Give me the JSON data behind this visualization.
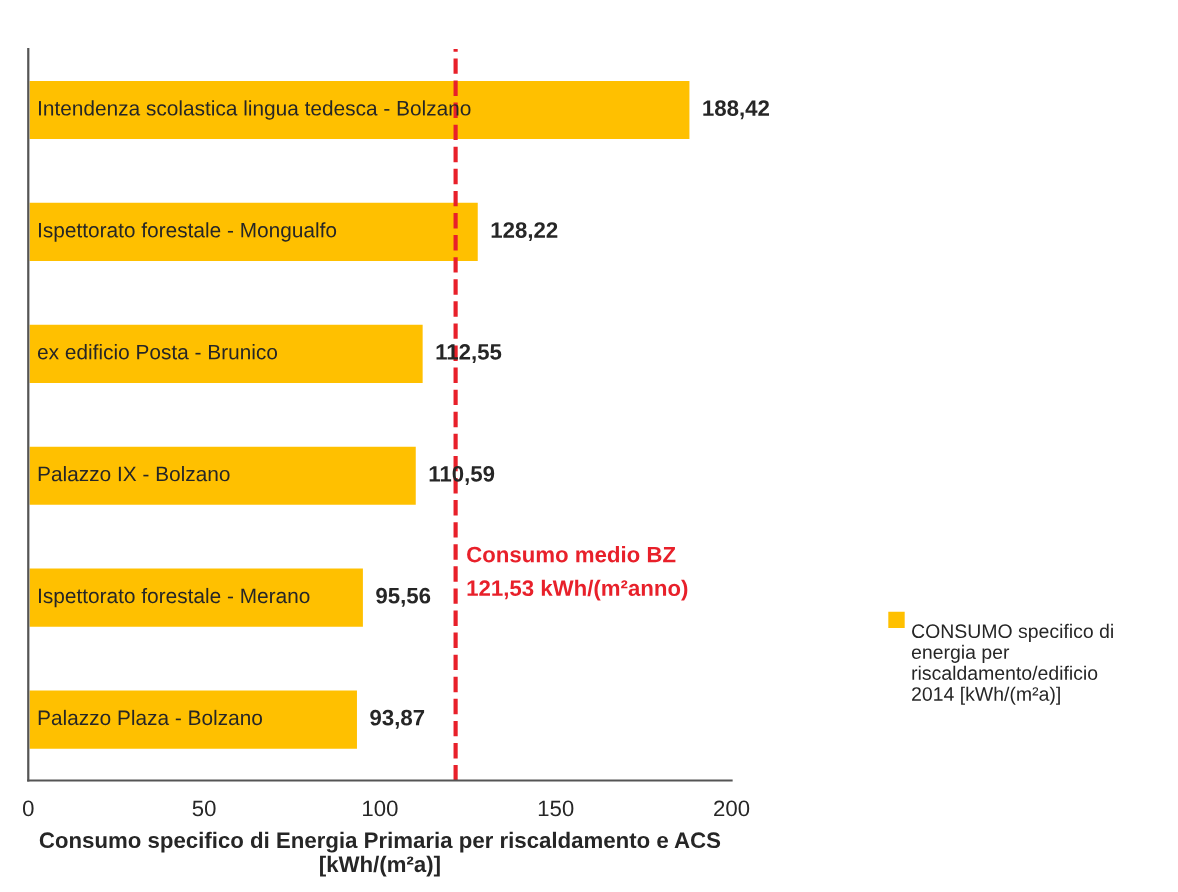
{
  "chart_data": {
    "type": "bar",
    "orientation": "horizontal",
    "categories": [
      "Intendenza scolastica lingua tedesca - Bolzano",
      "Ispettorato forestale - Mongualfo",
      "ex edificio Posta - Brunico",
      "Palazzo IX - Bolzano",
      "Ispettorato forestale - Merano",
      "Palazzo Plaza - Bolzano"
    ],
    "series": [
      {
        "name": "CONSUMO specifico di energia per riscaldamento/edificio 2014 [kWh/(m²a)]",
        "color": "#ffc000",
        "values": [
          188.42,
          128.22,
          112.55,
          110.59,
          95.56,
          93.87
        ],
        "value_labels": [
          "188,42",
          "128,22",
          "112,55",
          "110,59",
          "95,56",
          "93,87"
        ]
      }
    ],
    "xlabel": "Consumo specifico di Energia Primaria per riscaldamento e ACS\n[kWh/(m²a)]",
    "xlim": [
      0,
      200
    ],
    "xticks": [
      0,
      50,
      100,
      150,
      200
    ],
    "ref_lines": [
      {
        "axis": "x",
        "value": 121.53,
        "label": "Consumo medio BZ\n121,53 kWh/(m²anno)",
        "color": "#e8202a",
        "line_style": "dashed"
      }
    ],
    "grid": false,
    "legend": "right"
  }
}
